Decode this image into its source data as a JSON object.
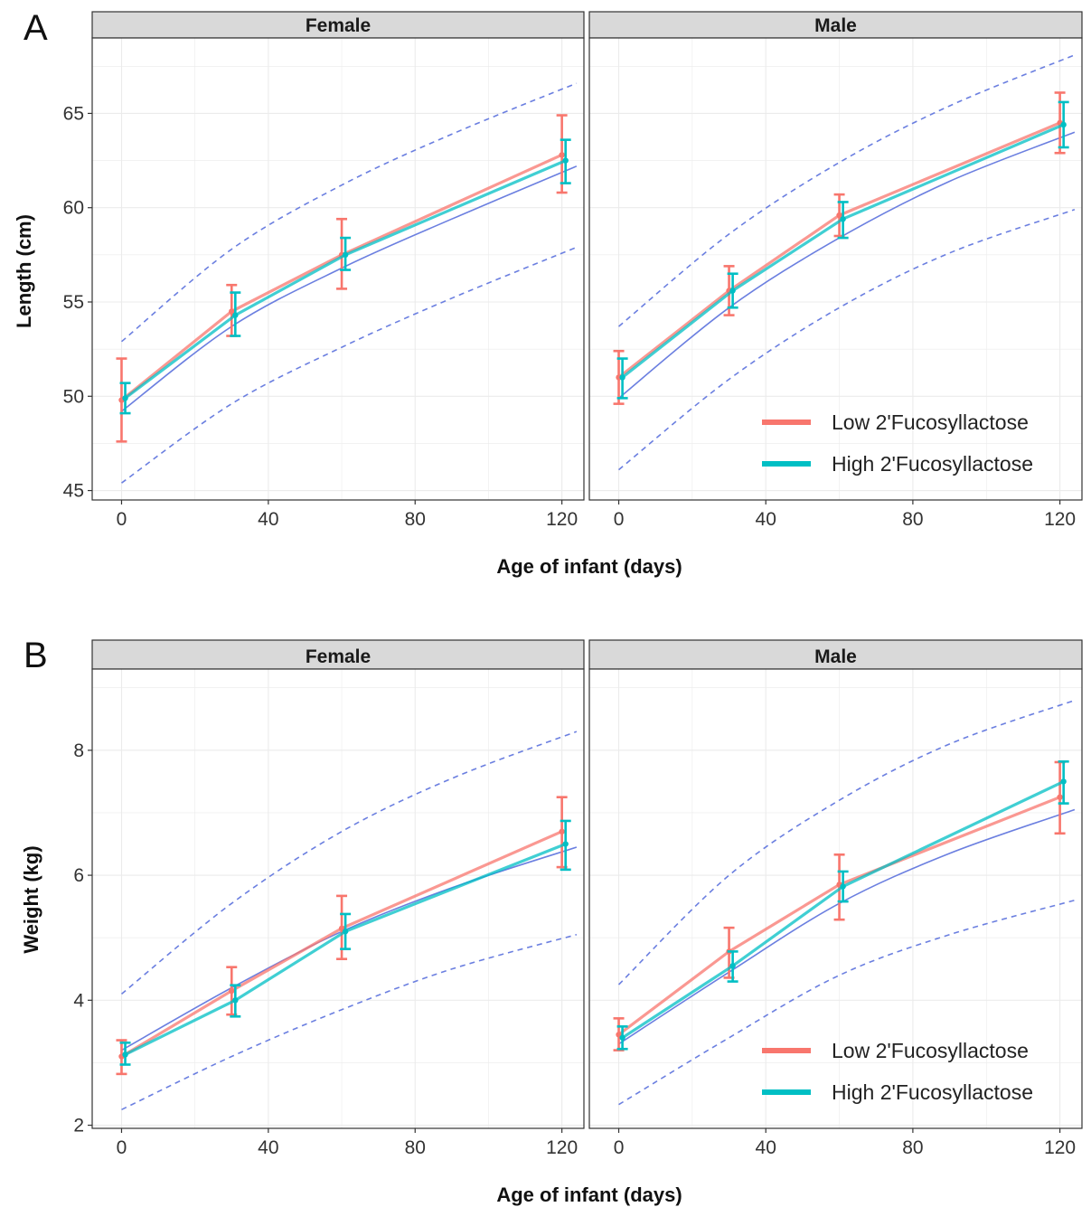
{
  "chart_data": [
    {
      "type": "line",
      "panel_label": "A",
      "facets": [
        "Female",
        "Male"
      ],
      "xlabel": "Age of infant (days)",
      "ylabel": "Length (cm)",
      "xlim": [
        -8,
        126
      ],
      "ylim": [
        44.5,
        69
      ],
      "xticks": [
        0,
        40,
        80,
        120
      ],
      "yticks": [
        45,
        50,
        55,
        60,
        65
      ],
      "grid": true,
      "legend_position": "bottom-right of Male panel",
      "legend": [
        "Low 2'Fucosyllactose",
        "High 2'Fucosyllactose"
      ],
      "colors": {
        "low": "#f8766d",
        "high": "#00bfc4",
        "reference": "#6b7fe0"
      },
      "panels": [
        {
          "facet": "Female",
          "series": [
            {
              "name": "Low 2'Fucosyllactose",
              "x": [
                0,
                30,
                60,
                120
              ],
              "y": [
                49.8,
                54.5,
                57.5,
                62.8
              ],
              "lower": [
                47.6,
                53.2,
                55.7,
                60.8
              ],
              "upper": [
                52.0,
                55.9,
                59.4,
                64.9
              ]
            },
            {
              "name": "High 2'Fucosyllactose",
              "x": [
                1,
                31,
                61,
                121
              ],
              "y": [
                49.9,
                54.3,
                57.5,
                62.5
              ],
              "lower": [
                49.1,
                53.2,
                56.7,
                61.3
              ],
              "upper": [
                50.7,
                55.5,
                58.4,
                63.6
              ]
            }
          ],
          "reference": {
            "x": [
              0,
              30,
              60,
              90,
              124
            ],
            "median": [
              49.2,
              53.7,
              56.8,
              59.4,
              62.2
            ],
            "lower": [
              45.4,
              49.6,
              52.6,
              55.2,
              57.9
            ],
            "upper": [
              52.9,
              57.8,
              61.2,
              63.9,
              66.6
            ]
          }
        },
        {
          "facet": "Male",
          "series": [
            {
              "name": "Low 2'Fucosyllactose",
              "x": [
                0,
                30,
                60,
                120
              ],
              "y": [
                51.0,
                55.6,
                59.6,
                64.5
              ],
              "lower": [
                49.6,
                54.3,
                58.5,
                62.9
              ],
              "upper": [
                52.4,
                56.9,
                60.7,
                66.1
              ]
            },
            {
              "name": "High 2'Fucosyllactose",
              "x": [
                1,
                31,
                61,
                121
              ],
              "y": [
                51.0,
                55.6,
                59.4,
                64.4
              ],
              "lower": [
                49.9,
                54.7,
                58.4,
                63.2
              ],
              "upper": [
                52.0,
                56.5,
                60.3,
                65.6
              ]
            }
          ],
          "reference": {
            "x": [
              0,
              30,
              60,
              90,
              124
            ],
            "median": [
              49.9,
              54.7,
              58.4,
              61.4,
              64.0
            ],
            "lower": [
              46.1,
              50.9,
              54.7,
              57.6,
              59.9
            ],
            "upper": [
              53.7,
              58.6,
              62.4,
              65.4,
              68.1
            ]
          }
        }
      ]
    },
    {
      "type": "line",
      "panel_label": "B",
      "facets": [
        "Female",
        "Male"
      ],
      "xlabel": "Age of infant (days)",
      "ylabel": "Weight (kg)",
      "xlim": [
        -8,
        126
      ],
      "ylim": [
        1.95,
        9.3
      ],
      "xticks": [
        0,
        40,
        80,
        120
      ],
      "yticks": [
        2,
        4,
        6,
        8
      ],
      "grid": true,
      "legend_position": "bottom-right of Male panel",
      "legend": [
        "Low 2'Fucosyllactose",
        "High 2'Fucosyllactose"
      ],
      "colors": {
        "low": "#f8766d",
        "high": "#00bfc4",
        "reference": "#6b7fe0"
      },
      "panels": [
        {
          "facet": "Female",
          "series": [
            {
              "name": "Low 2'Fucosyllactose",
              "x": [
                0,
                30,
                60,
                120
              ],
              "y": [
                3.1,
                4.15,
                5.15,
                6.7
              ],
              "lower": [
                2.82,
                3.77,
                4.66,
                6.13
              ],
              "upper": [
                3.36,
                4.53,
                5.67,
                7.25
              ]
            },
            {
              "name": "High 2'Fucosyllactose",
              "x": [
                1,
                31,
                61,
                121
              ],
              "y": [
                3.13,
                4.0,
                5.1,
                6.5
              ],
              "lower": [
                2.97,
                3.74,
                4.82,
                6.09
              ],
              "upper": [
                3.32,
                4.24,
                5.38,
                6.87
              ]
            }
          ],
          "reference": {
            "x": [
              0,
              30,
              60,
              90,
              124
            ],
            "median": [
              3.2,
              4.2,
              5.1,
              5.8,
              6.45
            ],
            "lower": [
              2.25,
              3.1,
              3.85,
              4.5,
              5.05
            ],
            "upper": [
              4.1,
              5.55,
              6.7,
              7.55,
              8.3
            ]
          }
        },
        {
          "facet": "Male",
          "series": [
            {
              "name": "Low 2'Fucosyllactose",
              "x": [
                0,
                30,
                60,
                120
              ],
              "y": [
                3.45,
                4.78,
                5.85,
                7.25
              ],
              "lower": [
                3.2,
                4.36,
                5.29,
                6.67
              ],
              "upper": [
                3.71,
                5.16,
                6.33,
                7.81
              ]
            },
            {
              "name": "High 2'Fucosyllactose",
              "x": [
                1,
                31,
                61,
                121
              ],
              "y": [
                3.4,
                4.55,
                5.82,
                7.5
              ],
              "lower": [
                3.22,
                4.3,
                5.58,
                7.15
              ],
              "upper": [
                3.58,
                4.78,
                6.06,
                7.82
              ]
            }
          ],
          "reference": {
            "x": [
              0,
              30,
              60,
              90,
              124
            ],
            "median": [
              3.3,
              4.45,
              5.55,
              6.35,
              7.05
            ],
            "lower": [
              2.33,
              3.4,
              4.4,
              5.05,
              5.6
            ],
            "upper": [
              4.25,
              6.0,
              7.2,
              8.1,
              8.8
            ]
          }
        }
      ]
    }
  ]
}
